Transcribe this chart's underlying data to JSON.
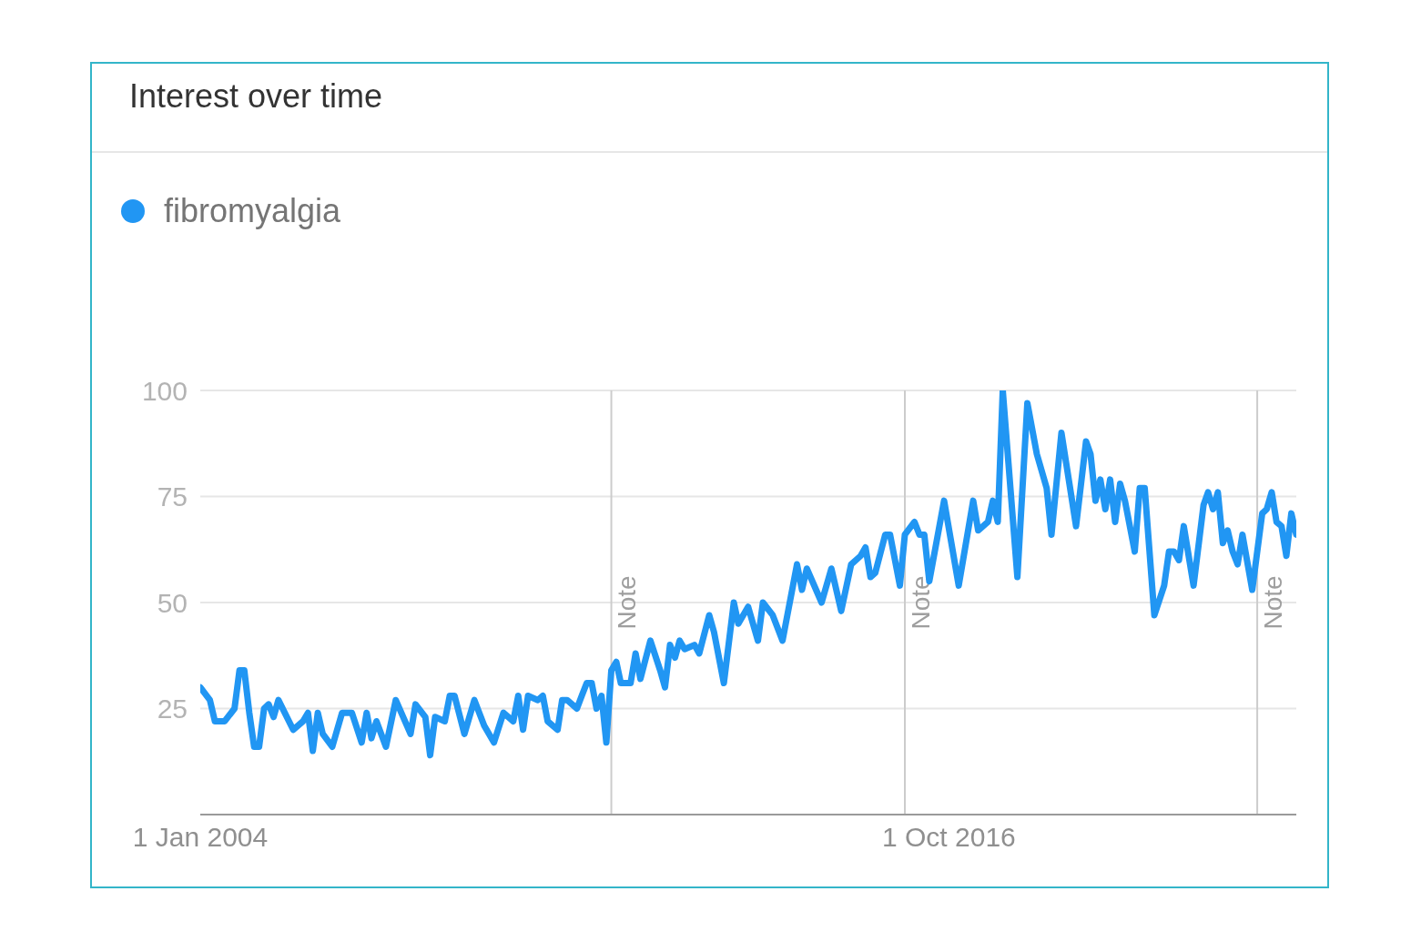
{
  "chart_data": {
    "type": "line",
    "title": "Interest over time",
    "x": [
      "2004-01",
      "2004-03",
      "2004-04",
      "2004-06",
      "2004-08",
      "2004-09",
      "2004-10",
      "2004-11",
      "2004-12",
      "2005-01",
      "2005-02",
      "2005-03",
      "2005-04",
      "2005-05",
      "2005-08",
      "2005-10",
      "2005-11",
      "2005-12",
      "2006-01",
      "2006-02",
      "2006-04",
      "2006-06",
      "2006-08",
      "2006-10",
      "2006-11",
      "2006-12",
      "2007-01",
      "2007-03",
      "2007-05",
      "2007-08",
      "2007-09",
      "2007-11",
      "2007-12",
      "2008-01",
      "2008-03",
      "2008-04",
      "2008-05",
      "2008-07",
      "2008-09",
      "2008-11",
      "2009-01",
      "2009-03",
      "2009-05",
      "2009-06",
      "2009-07",
      "2009-08",
      "2009-10",
      "2009-11",
      "2009-12",
      "2010-02",
      "2010-03",
      "2010-04",
      "2010-06",
      "2010-07",
      "2010-08",
      "2010-09",
      "2010-10",
      "2010-11",
      "2010-12",
      "2011-01",
      "2011-02",
      "2011-03",
      "2011-05",
      "2011-06",
      "2011-07",
      "2011-09",
      "2011-11",
      "2011-12",
      "2012-01",
      "2012-02",
      "2012-03",
      "2012-04",
      "2012-06",
      "2012-07",
      "2012-09",
      "2012-10",
      "2012-12",
      "2013-02",
      "2013-03",
      "2013-05",
      "2013-07",
      "2013-08",
      "2013-10",
      "2013-12",
      "2014-03",
      "2014-04",
      "2014-05",
      "2014-08",
      "2014-10",
      "2014-12",
      "2015-02",
      "2015-04",
      "2015-05",
      "2015-06",
      "2015-07",
      "2015-09",
      "2015-10",
      "2015-12",
      "2016-01",
      "2016-03",
      "2016-04",
      "2016-05",
      "2016-06",
      "2016-09",
      "2016-12",
      "2017-03",
      "2017-04",
      "2017-06",
      "2017-07",
      "2017-08",
      "2017-09",
      "2017-12",
      "2018-02",
      "2018-04",
      "2018-06",
      "2018-07",
      "2018-09",
      "2018-12",
      "2019-02",
      "2019-03",
      "2019-04",
      "2019-05",
      "2019-06",
      "2019-07",
      "2019-08",
      "2019-09",
      "2019-10",
      "2019-12",
      "2020-01",
      "2020-02",
      "2020-04",
      "2020-06",
      "2020-07",
      "2020-08",
      "2020-09",
      "2020-10",
      "2020-12",
      "2021-02",
      "2021-03",
      "2021-04",
      "2021-05",
      "2021-06",
      "2021-07",
      "2021-08",
      "2021-09",
      "2021-10",
      "2021-12",
      "2022-02",
      "2022-03",
      "2022-04",
      "2022-05",
      "2022-06",
      "2022-07",
      "2022-08",
      "2022-09"
    ],
    "series": [
      {
        "name": "fibromyalgia",
        "color": "#2196f3",
        "values": [
          30,
          27,
          22,
          22,
          25,
          34,
          34,
          24,
          16,
          16,
          25,
          26,
          23,
          27,
          20,
          22,
          24,
          15,
          24,
          19,
          16,
          24,
          24,
          17,
          24,
          18,
          22,
          16,
          27,
          19,
          26,
          23,
          14,
          23,
          22,
          28,
          28,
          19,
          27,
          21,
          17,
          24,
          22,
          28,
          20,
          28,
          27,
          28,
          22,
          20,
          27,
          27,
          25,
          28,
          31,
          31,
          25,
          28,
          17,
          34,
          36,
          31,
          31,
          38,
          32,
          41,
          34,
          30,
          40,
          37,
          41,
          39,
          40,
          38,
          47,
          43,
          31,
          50,
          45,
          49,
          41,
          50,
          47,
          41,
          59,
          53,
          58,
          50,
          58,
          48,
          59,
          61,
          63,
          56,
          57,
          66,
          66,
          54,
          66,
          69,
          66,
          66,
          55,
          74,
          54,
          74,
          67,
          69,
          74,
          69,
          100,
          56,
          97,
          85,
          77,
          66,
          90,
          68,
          88,
          85,
          74,
          79,
          72,
          79,
          69,
          78,
          74,
          62,
          77,
          77,
          47,
          54,
          62,
          62,
          60,
          68,
          54,
          73,
          76,
          72,
          76,
          64,
          67,
          62,
          59,
          66,
          53,
          71,
          72,
          76,
          69,
          68,
          61,
          71,
          66
        ]
      }
    ],
    "xlim": [
      "2004-01",
      "2022-09"
    ],
    "xticks": [
      {
        "value": "2004-01-01",
        "label": "1 Jan 2004"
      },
      {
        "value": "2016-10-01",
        "label": "1 Oct 2016"
      }
    ],
    "ylim": [
      0,
      100
    ],
    "yticks": [
      25,
      50,
      75,
      100
    ],
    "grid": "y",
    "legend": "top left",
    "line_style": "solid",
    "ref_lines": [
      {
        "axis": "x",
        "value": "2011-01-01",
        "label": "Note",
        "color": "#cccccc"
      },
      {
        "axis": "x",
        "value": "2016-01-01",
        "label": "Note",
        "color": "#cccccc"
      },
      {
        "axis": "x",
        "value": "2022-01-01",
        "label": "Note",
        "color": "#cccccc"
      }
    ]
  }
}
